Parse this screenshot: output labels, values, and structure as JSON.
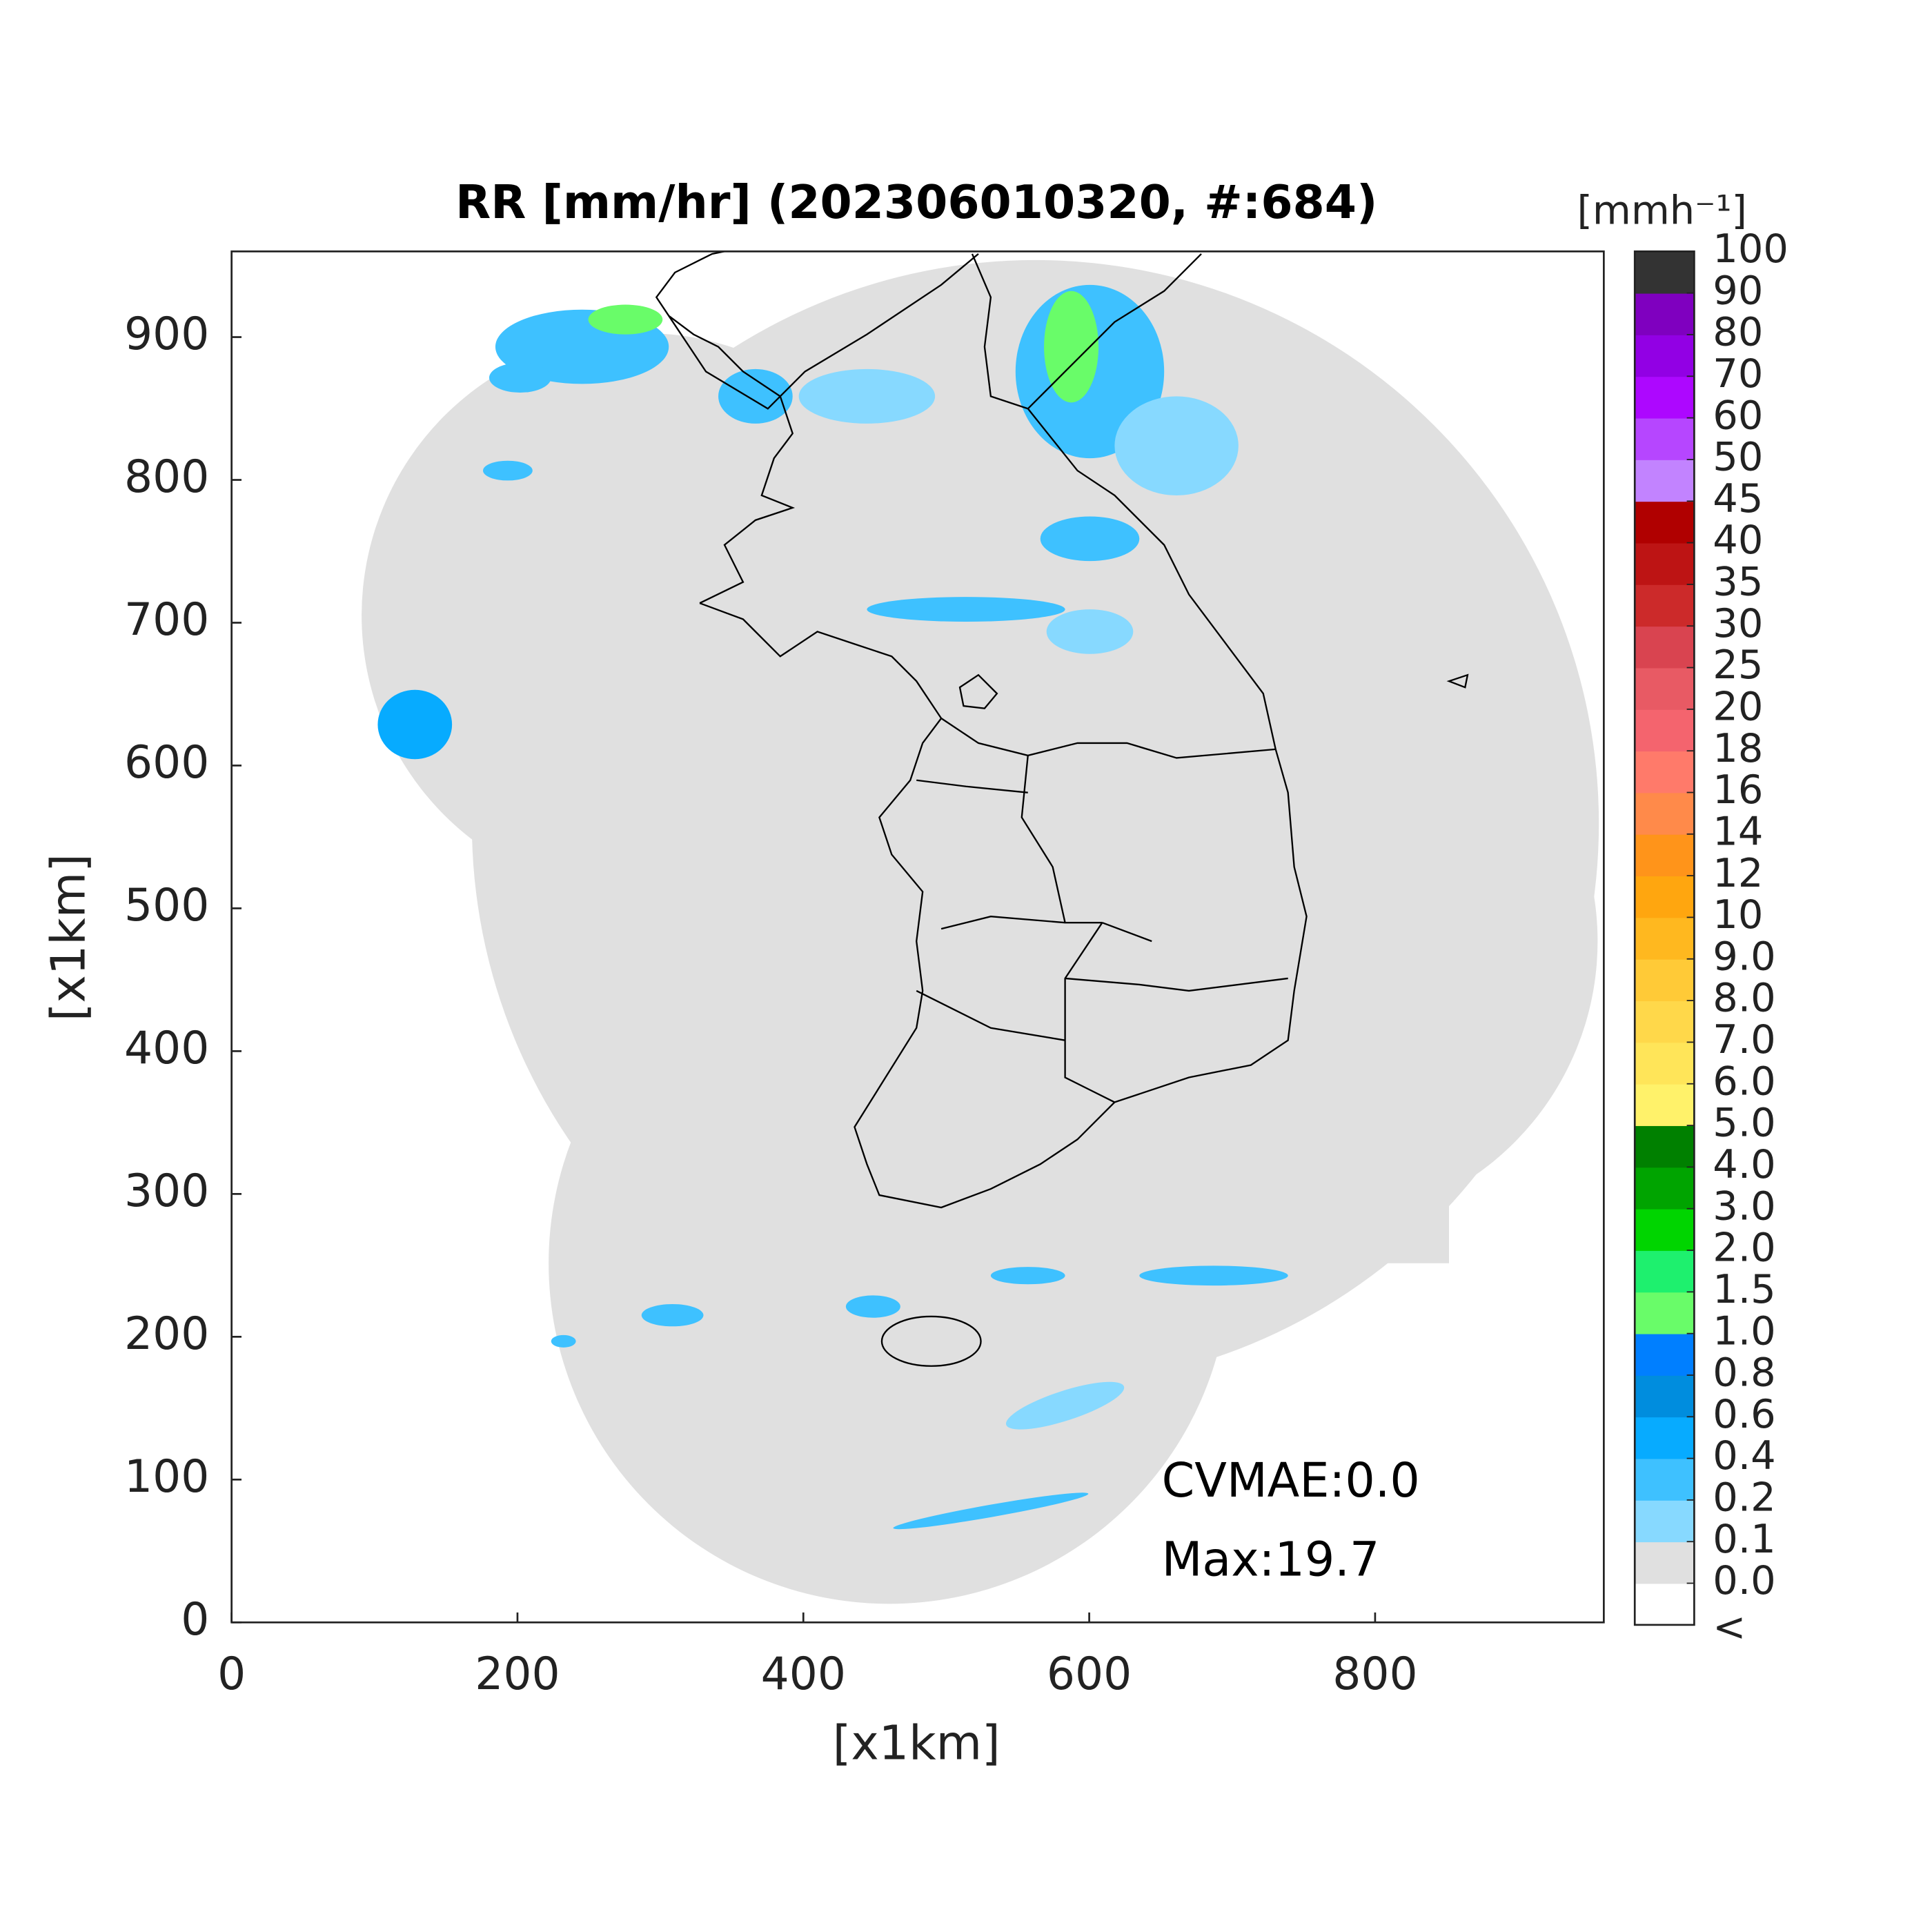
{
  "chart_data": {
    "type": "map",
    "title": "RR [mm/hr] (202306010320, #:684)",
    "xlabel": "[x1km]",
    "ylabel": "[x1km]",
    "xlim": [
      0,
      960
    ],
    "ylim": [
      0,
      960
    ],
    "xticks": [
      0,
      200,
      400,
      600,
      800
    ],
    "yticks": [
      0,
      100,
      200,
      300,
      400,
      500,
      600,
      700,
      800,
      900
    ],
    "annotations": [
      "CVMAE:0.0",
      "Max:19.7"
    ],
    "colorbar": {
      "label": "[mmh⁻¹]",
      "below_label": "<",
      "ticks": [
        {
          "value": 0,
          "label": "0.0"
        },
        0.1,
        0.2,
        0.4,
        0.6,
        0.8,
        {
          "value": 1,
          "label": "1.0"
        },
        1.5,
        {
          "value": 2,
          "label": "2.0"
        },
        {
          "value": 3,
          "label": "3.0"
        },
        {
          "value": 4,
          "label": "4.0"
        },
        {
          "value": 5,
          "label": "5.0"
        },
        {
          "value": 6,
          "label": "6.0"
        },
        {
          "value": 7,
          "label": "7.0"
        },
        {
          "value": 8,
          "label": "8.0"
        },
        {
          "value": 9,
          "label": "9.0"
        },
        10,
        12,
        14,
        16,
        18,
        20,
        25,
        30,
        35,
        40,
        45,
        50,
        60,
        70,
        80,
        90,
        100
      ],
      "colors": [
        "#ffffff",
        "#e0e0e0",
        "#87d9ff",
        "#3ec1ff",
        "#07abff",
        "#008dde",
        "#007fff",
        "#69fc69",
        "#1ef06e",
        "#00d500",
        "#00a400",
        "#008000",
        "#fff26a",
        "#ffe559",
        "#ffd84a",
        "#ffca37",
        "#ffb81f",
        "#ffa60f",
        "#ff941a",
        "#ff8a4a",
        "#ff7a6a",
        "#f4646e",
        "#e85a64",
        "#d94450",
        "#cc2a2a",
        "#bd1414",
        "#b00000",
        "#c283ff",
        "#b646ff",
        "#ad07ff",
        "#9200e4",
        "#7f00bf",
        "#333333"
      ]
    }
  }
}
